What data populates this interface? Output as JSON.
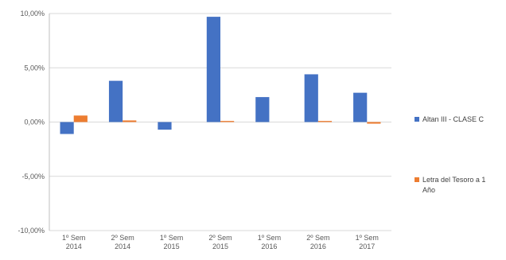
{
  "chart_data": {
    "type": "bar",
    "title": "",
    "xlabel": "",
    "ylabel": "",
    "ylim": [
      -10,
      10
    ],
    "yticks": [
      10,
      5,
      0,
      -5,
      -10
    ],
    "ytick_labels": [
      "10,00%",
      "5,00%",
      "0,00%",
      "-5,00%",
      "-10,00%"
    ],
    "grid": true,
    "legend_position": "right",
    "categories": [
      [
        "1º Sem",
        "2014"
      ],
      [
        "2º Sem",
        "2014"
      ],
      [
        "1º Sem",
        "2015"
      ],
      [
        "2º Sem",
        "2015"
      ],
      [
        "1º Sem",
        "2016"
      ],
      [
        "2º Sem",
        "2016"
      ],
      [
        "1º Sem",
        "2017"
      ]
    ],
    "series": [
      {
        "name": "Altan III - CLASE C",
        "color": "#4472C4",
        "values": [
          -1.1,
          3.8,
          -0.7,
          9.7,
          2.3,
          4.4,
          2.7
        ]
      },
      {
        "name_lines": [
          "Letra del Tesoro a 1",
          "Año"
        ],
        "color": "#ED7D31",
        "values": [
          0.6,
          0.15,
          0.0,
          0.1,
          0.0,
          0.1,
          -0.15
        ]
      }
    ]
  }
}
